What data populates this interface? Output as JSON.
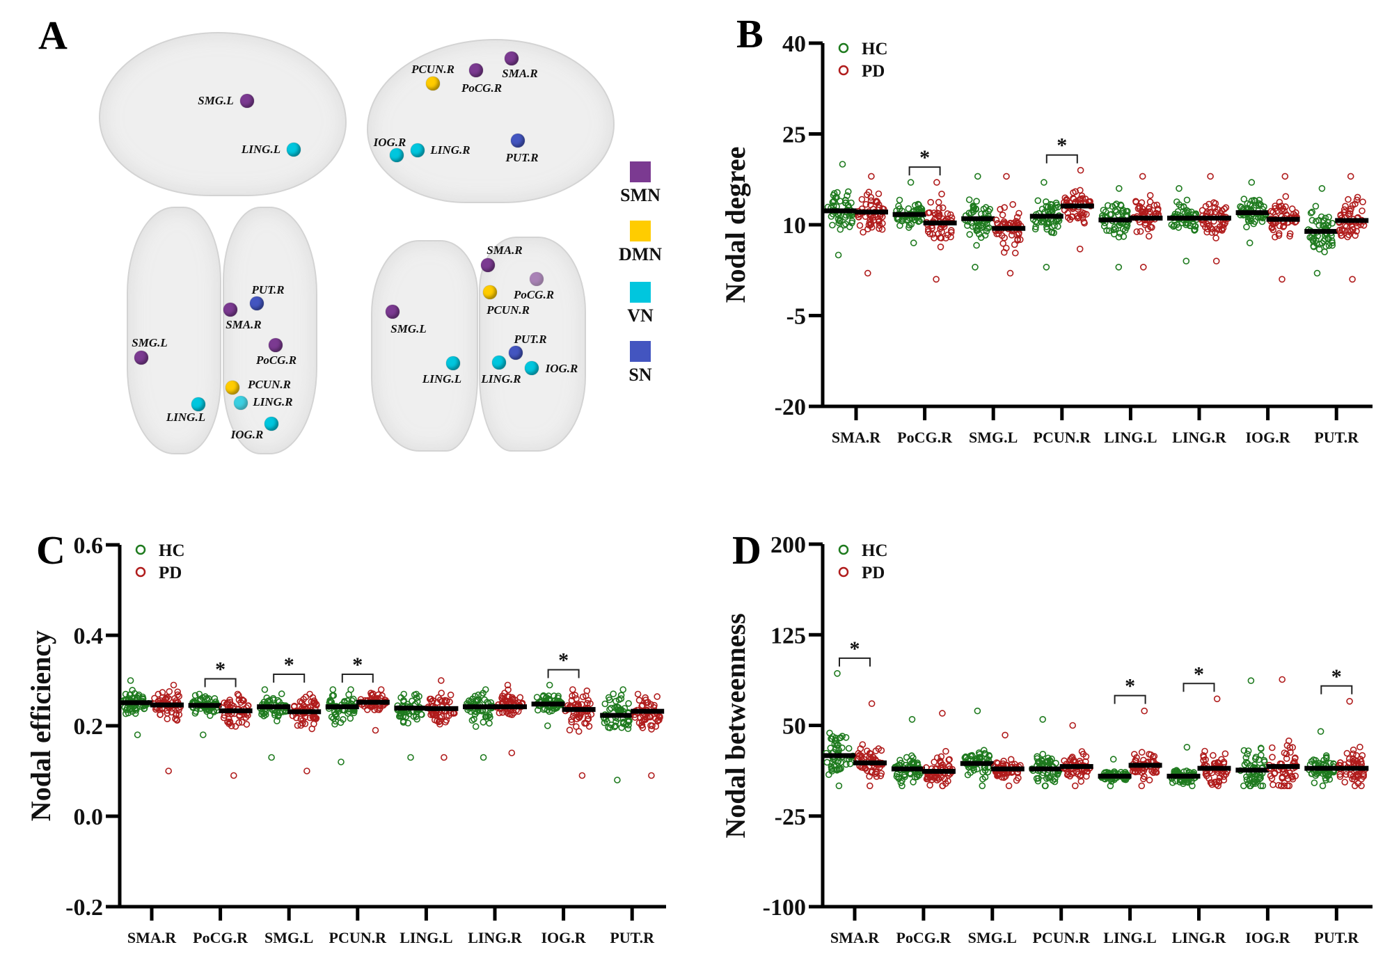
{
  "panel_a": {
    "letter": "A",
    "network_legend": [
      {
        "label": "SMN",
        "color": "#7b3a91"
      },
      {
        "label": "DMN",
        "color": "#ffcc00"
      },
      {
        "label": "VN",
        "color": "#00c6de"
      },
      {
        "label": "SN",
        "color": "#4355c0"
      }
    ],
    "views": [
      {
        "name": "left-lateral",
        "nodes": [
          {
            "label": "SMG.L",
            "network": "SMN"
          },
          {
            "label": "LING.L",
            "network": "VN"
          }
        ]
      },
      {
        "name": "right-lateral",
        "nodes": [
          {
            "label": "PCUN.R",
            "network": "DMN"
          },
          {
            "label": "PoCG.R",
            "network": "SMN"
          },
          {
            "label": "SMA.R",
            "network": "SMN"
          },
          {
            "label": "IOG.R",
            "network": "VN"
          },
          {
            "label": "LING.R",
            "network": "VN"
          },
          {
            "label": "PUT.R",
            "network": "SN"
          }
        ]
      },
      {
        "name": "axial",
        "nodes": [
          {
            "label": "PUT.R",
            "network": "SN"
          },
          {
            "label": "SMA.R",
            "network": "SMN"
          },
          {
            "label": "SMG.L",
            "network": "SMN"
          },
          {
            "label": "PoCG.R",
            "network": "SMN"
          },
          {
            "label": "PCUN.R",
            "network": "DMN"
          },
          {
            "label": "LING.L",
            "network": "VN"
          },
          {
            "label": "LING.R",
            "network": "VN"
          },
          {
            "label": "IOG.R",
            "network": "VN"
          }
        ]
      },
      {
        "name": "posterior",
        "nodes": [
          {
            "label": "SMA.R",
            "network": "SMN"
          },
          {
            "label": "PoCG.R",
            "network": "SMN"
          },
          {
            "label": "PCUN.R",
            "network": "DMN"
          },
          {
            "label": "SMG.L",
            "network": "SMN"
          },
          {
            "label": "PUT.R",
            "network": "SN"
          },
          {
            "label": "LING.L",
            "network": "VN"
          },
          {
            "label": "LING.R",
            "network": "VN"
          },
          {
            "label": "IOG.R",
            "network": "VN"
          }
        ]
      }
    ]
  },
  "colors": {
    "HC": "#1e7a1e",
    "PD": "#b01c1c",
    "median": "#000000"
  },
  "chart_data": [
    {
      "panel": "B",
      "type": "scatter",
      "title": "",
      "xlabel": "",
      "ylabel": "Nodal degree",
      "ylim": [
        -20,
        40
      ],
      "yticks": [
        40,
        25,
        10,
        -5,
        -20
      ],
      "legend": [
        "HC",
        "PD"
      ],
      "legend_position": "top-left",
      "categories": [
        "SMA.R",
        "PoCG.R",
        "SMG.L",
        "PCUN.R",
        "LING.L",
        "LING.R",
        "IOG.R",
        "PUT.R"
      ],
      "series": [
        {
          "name": "HC",
          "median": [
            12.3,
            11.7,
            11.0,
            11.4,
            10.8,
            11.1,
            12.0,
            8.9
          ],
          "min": [
            5,
            7,
            3,
            3,
            3,
            4,
            7,
            2
          ],
          "max": [
            20,
            17,
            18,
            17,
            16,
            16,
            17,
            16
          ]
        },
        {
          "name": "PD",
          "median": [
            12.1,
            10.3,
            9.4,
            13.1,
            11.1,
            11.1,
            10.9,
            10.7
          ],
          "min": [
            2,
            1,
            2,
            6,
            3,
            4,
            1,
            1
          ],
          "max": [
            18,
            17,
            18,
            19,
            18,
            18,
            18,
            18
          ]
        }
      ],
      "significant": [
        "PoCG.R",
        "PCUN.R"
      ],
      "significance_marker": "*"
    },
    {
      "panel": "C",
      "type": "scatter",
      "title": "",
      "xlabel": "",
      "ylabel": "Nodal efficiency",
      "ylim": [
        -0.2,
        0.6
      ],
      "yticks": [
        "0.6",
        "0.4",
        "0.2",
        "0.0",
        "-0.2"
      ],
      "legend": [
        "HC",
        "PD"
      ],
      "legend_position": "top-left",
      "categories": [
        "SMA.R",
        "PoCG.R",
        "SMG.L",
        "PCUN.R",
        "LING.L",
        "LING.R",
        "IOG.R",
        "PUT.R"
      ],
      "series": [
        {
          "name": "HC",
          "median": [
            0.251,
            0.245,
            0.242,
            0.242,
            0.239,
            0.242,
            0.248,
            0.223
          ],
          "min": [
            0.18,
            0.18,
            0.13,
            0.12,
            0.13,
            0.13,
            0.2,
            0.08
          ],
          "max": [
            0.3,
            0.27,
            0.28,
            0.28,
            0.27,
            0.28,
            0.29,
            0.28
          ]
        },
        {
          "name": "PD",
          "median": [
            0.246,
            0.233,
            0.231,
            0.252,
            0.238,
            0.242,
            0.236,
            0.232
          ],
          "min": [
            0.1,
            0.09,
            0.1,
            0.19,
            0.13,
            0.14,
            0.09,
            0.09
          ],
          "max": [
            0.29,
            0.27,
            0.27,
            0.28,
            0.3,
            0.29,
            0.28,
            0.27
          ]
        }
      ],
      "significant": [
        "PoCG.R",
        "SMG.L",
        "PCUN.R",
        "IOG.R"
      ],
      "significance_marker": "*"
    },
    {
      "panel": "D",
      "type": "scatter",
      "title": "",
      "xlabel": "",
      "ylabel": "Nodal betweenness",
      "ylim": [
        -100,
        200
      ],
      "yticks": [
        200,
        125,
        50,
        -25,
        -100
      ],
      "legend": [
        "HC",
        "PD"
      ],
      "legend_position": "top-left",
      "categories": [
        "SMA.R",
        "PoCG.R",
        "SMG.L",
        "PCUN.R",
        "LING.L",
        "LING.R",
        "IOG.R",
        "PUT.R"
      ],
      "series": [
        {
          "name": "HC",
          "median": [
            25,
            14,
            18.5,
            14,
            8,
            8,
            13,
            14.5
          ],
          "min": [
            0,
            0,
            0,
            0,
            0,
            0,
            0,
            0
          ],
          "max": [
            93,
            55,
            62,
            55,
            22,
            32,
            87,
            45
          ]
        },
        {
          "name": "PD",
          "median": [
            19,
            12,
            14,
            16,
            17,
            14.5,
            16,
            14.5
          ],
          "min": [
            0,
            0,
            0,
            0,
            0,
            0,
            0,
            0
          ],
          "max": [
            68,
            60,
            42,
            50,
            62,
            72,
            88,
            70
          ]
        }
      ],
      "significant": [
        "SMA.R",
        "LING.L",
        "LING.R",
        "PUT.R"
      ],
      "significance_marker": "*"
    }
  ],
  "panel_letters": {
    "B": "B",
    "C": "C",
    "D": "D"
  }
}
